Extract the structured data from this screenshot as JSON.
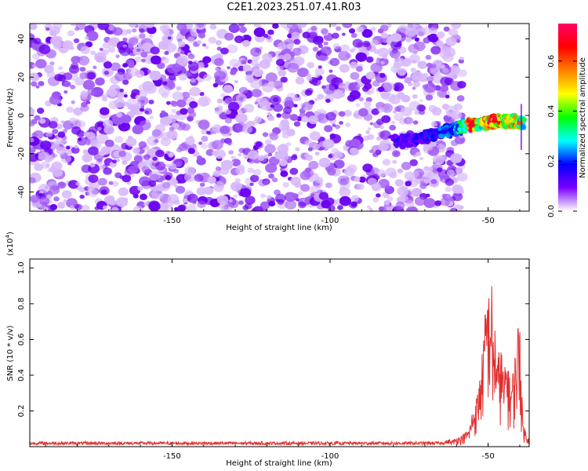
{
  "title": "C2E1.2023.251.07.41.R03",
  "chart_data": [
    {
      "type": "heatmap",
      "panel": "top",
      "xlabel": "Height of straight line (km)",
      "ylabel": "Frequency (Hz)",
      "xlim": [
        -195,
        -37
      ],
      "ylim": [
        -50,
        48
      ],
      "x_ticks": [
        -150,
        -100,
        -50
      ],
      "x_tick_labels": [
        "-150",
        "-100",
        "-50"
      ],
      "y_ticks": [
        -40,
        -20,
        0,
        20,
        40
      ],
      "y_tick_labels": [
        "-40",
        "-20",
        "0",
        "20",
        "40"
      ],
      "noise_region": {
        "x_range": [
          -195,
          -60
        ],
        "y_range": [
          -50,
          48
        ],
        "level": 0.1
      },
      "signal_track": [
        {
          "x": -80,
          "y": -14,
          "level": 0.12
        },
        {
          "x": -75,
          "y": -13,
          "level": 0.14
        },
        {
          "x": -70,
          "y": -11,
          "level": 0.16
        },
        {
          "x": -65,
          "y": -9,
          "level": 0.2
        },
        {
          "x": -60,
          "y": -7,
          "level": 0.26
        },
        {
          "x": -57,
          "y": -5,
          "level": 0.36
        },
        {
          "x": -55,
          "y": -5,
          "level": 0.68
        },
        {
          "x": -52,
          "y": -4,
          "level": 0.4
        },
        {
          "x": -50,
          "y": -4,
          "level": 0.55
        },
        {
          "x": -48,
          "y": -3,
          "level": 0.65
        },
        {
          "x": -46,
          "y": -3,
          "level": 0.62
        },
        {
          "x": -44,
          "y": -3,
          "level": 0.45
        },
        {
          "x": -42,
          "y": -3,
          "level": 0.5
        },
        {
          "x": -40,
          "y": -4,
          "level": 0.55
        },
        {
          "x": -39,
          "y": -4,
          "level": 0.3
        }
      ],
      "colorbar": {
        "label": "Normalized spectral amplitude",
        "range": [
          0.0,
          0.75
        ],
        "ticks": [
          0.0,
          0.2,
          0.4,
          0.6
        ],
        "tick_labels": [
          "0.0",
          "0.2",
          "0.4",
          "0.6"
        ],
        "colors": [
          "#ffffff",
          "#7b00ff",
          "#0000ff",
          "#00ffff",
          "#00ff00",
          "#ffff00",
          "#ff7f00",
          "#ff0000",
          "#ff0066"
        ]
      }
    },
    {
      "type": "line",
      "panel": "bottom",
      "xlabel": "Height of straight line (km)",
      "ylabel": "SNR (10 * v/v)",
      "y_multiplier": "(x10",
      "y_multiplier_exp": "4",
      "y_multiplier_close": ")",
      "xlim": [
        -195,
        -37
      ],
      "ylim": [
        0,
        1.05
      ],
      "x_ticks": [
        -150,
        -100,
        -50
      ],
      "x_tick_labels": [
        "-150",
        "-100",
        "-50"
      ],
      "y_ticks": [
        0.2,
        0.4,
        0.6,
        0.8,
        1.0
      ],
      "y_tick_labels": [
        "0.2",
        "0.4",
        "0.6",
        "0.8",
        "1.0"
      ],
      "line_color": "#e03030",
      "series": [
        {
          "x": [
            -195,
            -180,
            -160,
            -140,
            -120,
            -100,
            -80,
            -70,
            -65,
            -62,
            -60,
            -58,
            -56,
            -55,
            -54,
            -53,
            -52,
            -51,
            -50,
            -49.5,
            -49,
            -48.5,
            -48,
            -47,
            -46,
            -45,
            -44,
            -43,
            -42,
            -41,
            -40,
            -39.5,
            -39,
            -38,
            -37
          ],
          "values": [
            0.02,
            0.02,
            0.02,
            0.02,
            0.02,
            0.02,
            0.02,
            0.02,
            0.02,
            0.03,
            0.05,
            0.07,
            0.1,
            0.2,
            0.25,
            0.35,
            0.5,
            0.75,
            0.95,
            0.8,
            1.05,
            0.6,
            0.75,
            0.5,
            0.6,
            0.4,
            0.55,
            0.35,
            0.45,
            0.6,
            0.82,
            0.4,
            0.15,
            0.08,
            0.05
          ]
        }
      ]
    }
  ]
}
